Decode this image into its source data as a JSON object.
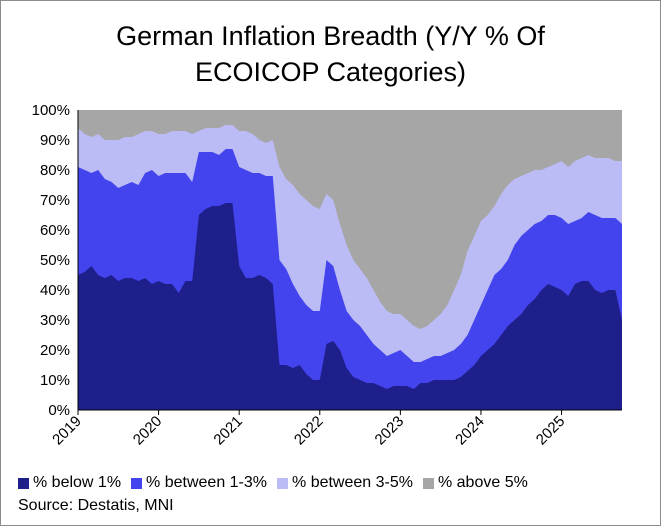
{
  "title_line1": "German Inflation Breadth (Y/Y % Of",
  "title_line2": "ECOICOP Categories)",
  "source": "Source: Destatis, MNI",
  "chart_data": {
    "type": "area",
    "stacked": true,
    "title": "German Inflation Breadth (Y/Y % Of ECOICOP Categories)",
    "xlabel": "",
    "ylabel": "",
    "ylim": [
      0,
      100
    ],
    "y_ticks": [
      "0%",
      "10%",
      "20%",
      "30%",
      "40%",
      "50%",
      "60%",
      "70%",
      "80%",
      "90%",
      "100%"
    ],
    "x_ticks": [
      "2019",
      "2020",
      "2021",
      "2022",
      "2023",
      "2024",
      "2025"
    ],
    "x": [
      2019.0,
      2019.083,
      2019.167,
      2019.25,
      2019.333,
      2019.417,
      2019.5,
      2019.583,
      2019.667,
      2019.75,
      2019.833,
      2019.917,
      2020.0,
      2020.083,
      2020.167,
      2020.25,
      2020.333,
      2020.417,
      2020.5,
      2020.583,
      2020.667,
      2020.75,
      2020.833,
      2020.917,
      2021.0,
      2021.083,
      2021.167,
      2021.25,
      2021.333,
      2021.417,
      2021.5,
      2021.583,
      2021.667,
      2021.75,
      2021.833,
      2021.917,
      2022.0,
      2022.083,
      2022.167,
      2022.25,
      2022.333,
      2022.417,
      2022.5,
      2022.583,
      2022.667,
      2022.75,
      2022.833,
      2022.917,
      2023.0,
      2023.083,
      2023.167,
      2023.25,
      2023.333,
      2023.417,
      2023.5,
      2023.583,
      2023.667,
      2023.75,
      2023.833,
      2023.917,
      2024.0,
      2024.083,
      2024.167,
      2024.25,
      2024.333,
      2024.417,
      2024.5,
      2024.583,
      2024.667,
      2024.75,
      2024.833,
      2024.917,
      2025.0,
      2025.083,
      2025.167,
      2025.25,
      2025.333,
      2025.417,
      2025.5,
      2025.583,
      2025.667,
      2025.75
    ],
    "series": [
      {
        "name": "% below 1%",
        "color": "#1f1f8c",
        "values": [
          45,
          46,
          48,
          45,
          44,
          45,
          43,
          44,
          44,
          43,
          44,
          42,
          43,
          42,
          42,
          39,
          43,
          43,
          65,
          67,
          68,
          68,
          69,
          69,
          48,
          44,
          44,
          45,
          44,
          42,
          15,
          15,
          14,
          15,
          12,
          10,
          10,
          22,
          23,
          20,
          14,
          11,
          10,
          9,
          9,
          8,
          7,
          8,
          8,
          8,
          7,
          9,
          9,
          10,
          10,
          10,
          10,
          11,
          13,
          15,
          18,
          20,
          22,
          25,
          28,
          30,
          32,
          35,
          37,
          40,
          42,
          41,
          40,
          38,
          42,
          43,
          43,
          40,
          39,
          40,
          40,
          30
        ]
      },
      {
        "name": "% between 1-3%",
        "color": "#4444ee",
        "values": [
          81,
          80,
          79,
          80,
          77,
          76,
          74,
          75,
          76,
          75,
          79,
          80,
          78,
          79,
          79,
          79,
          79,
          76,
          86,
          86,
          86,
          85,
          87,
          87,
          81,
          80,
          79,
          79,
          78,
          78,
          50,
          47,
          42,
          38,
          35,
          33,
          33,
          50,
          48,
          40,
          33,
          30,
          28,
          25,
          22,
          20,
          18,
          19,
          20,
          18,
          16,
          16,
          17,
          18,
          18,
          19,
          20,
          22,
          25,
          30,
          35,
          40,
          45,
          47,
          50,
          55,
          58,
          60,
          62,
          63,
          65,
          65,
          64,
          62,
          63,
          64,
          66,
          65,
          64,
          64,
          64,
          62
        ]
      },
      {
        "name": "% between 3-5%",
        "color": "#bbbbf5",
        "values": [
          94,
          92,
          91,
          92,
          90,
          90,
          90,
          91,
          91,
          92,
          93,
          93,
          92,
          92,
          93,
          93,
          93,
          92,
          93,
          94,
          94,
          94,
          95,
          95,
          93,
          93,
          92,
          90,
          89,
          90,
          81,
          77,
          75,
          72,
          70,
          68,
          67,
          72,
          70,
          62,
          55,
          50,
          47,
          44,
          40,
          36,
          33,
          32,
          32,
          30,
          28,
          27,
          28,
          30,
          32,
          35,
          40,
          45,
          53,
          58,
          63,
          65,
          68,
          72,
          75,
          77,
          78,
          79,
          80,
          80,
          81,
          82,
          83,
          81,
          83,
          84,
          85,
          84,
          84,
          84,
          83,
          83
        ]
      },
      {
        "name": "% above 5%",
        "color": "#a6a6a6",
        "values": [
          100,
          100,
          100,
          100,
          100,
          100,
          100,
          100,
          100,
          100,
          100,
          100,
          100,
          100,
          100,
          100,
          100,
          100,
          100,
          100,
          100,
          100,
          100,
          100,
          100,
          100,
          100,
          100,
          100,
          100,
          100,
          100,
          100,
          100,
          100,
          100,
          100,
          100,
          100,
          100,
          100,
          100,
          100,
          100,
          100,
          100,
          100,
          100,
          100,
          100,
          100,
          100,
          100,
          100,
          100,
          100,
          100,
          100,
          100,
          100,
          100,
          100,
          100,
          100,
          100,
          100,
          100,
          100,
          100,
          100,
          100,
          100,
          100,
          100,
          100,
          100,
          100,
          100,
          100,
          100,
          100,
          100
        ]
      }
    ],
    "value_semantics": "cumulative top edge of each stacked band (percent)",
    "legend_position": "bottom",
    "grid": false
  }
}
